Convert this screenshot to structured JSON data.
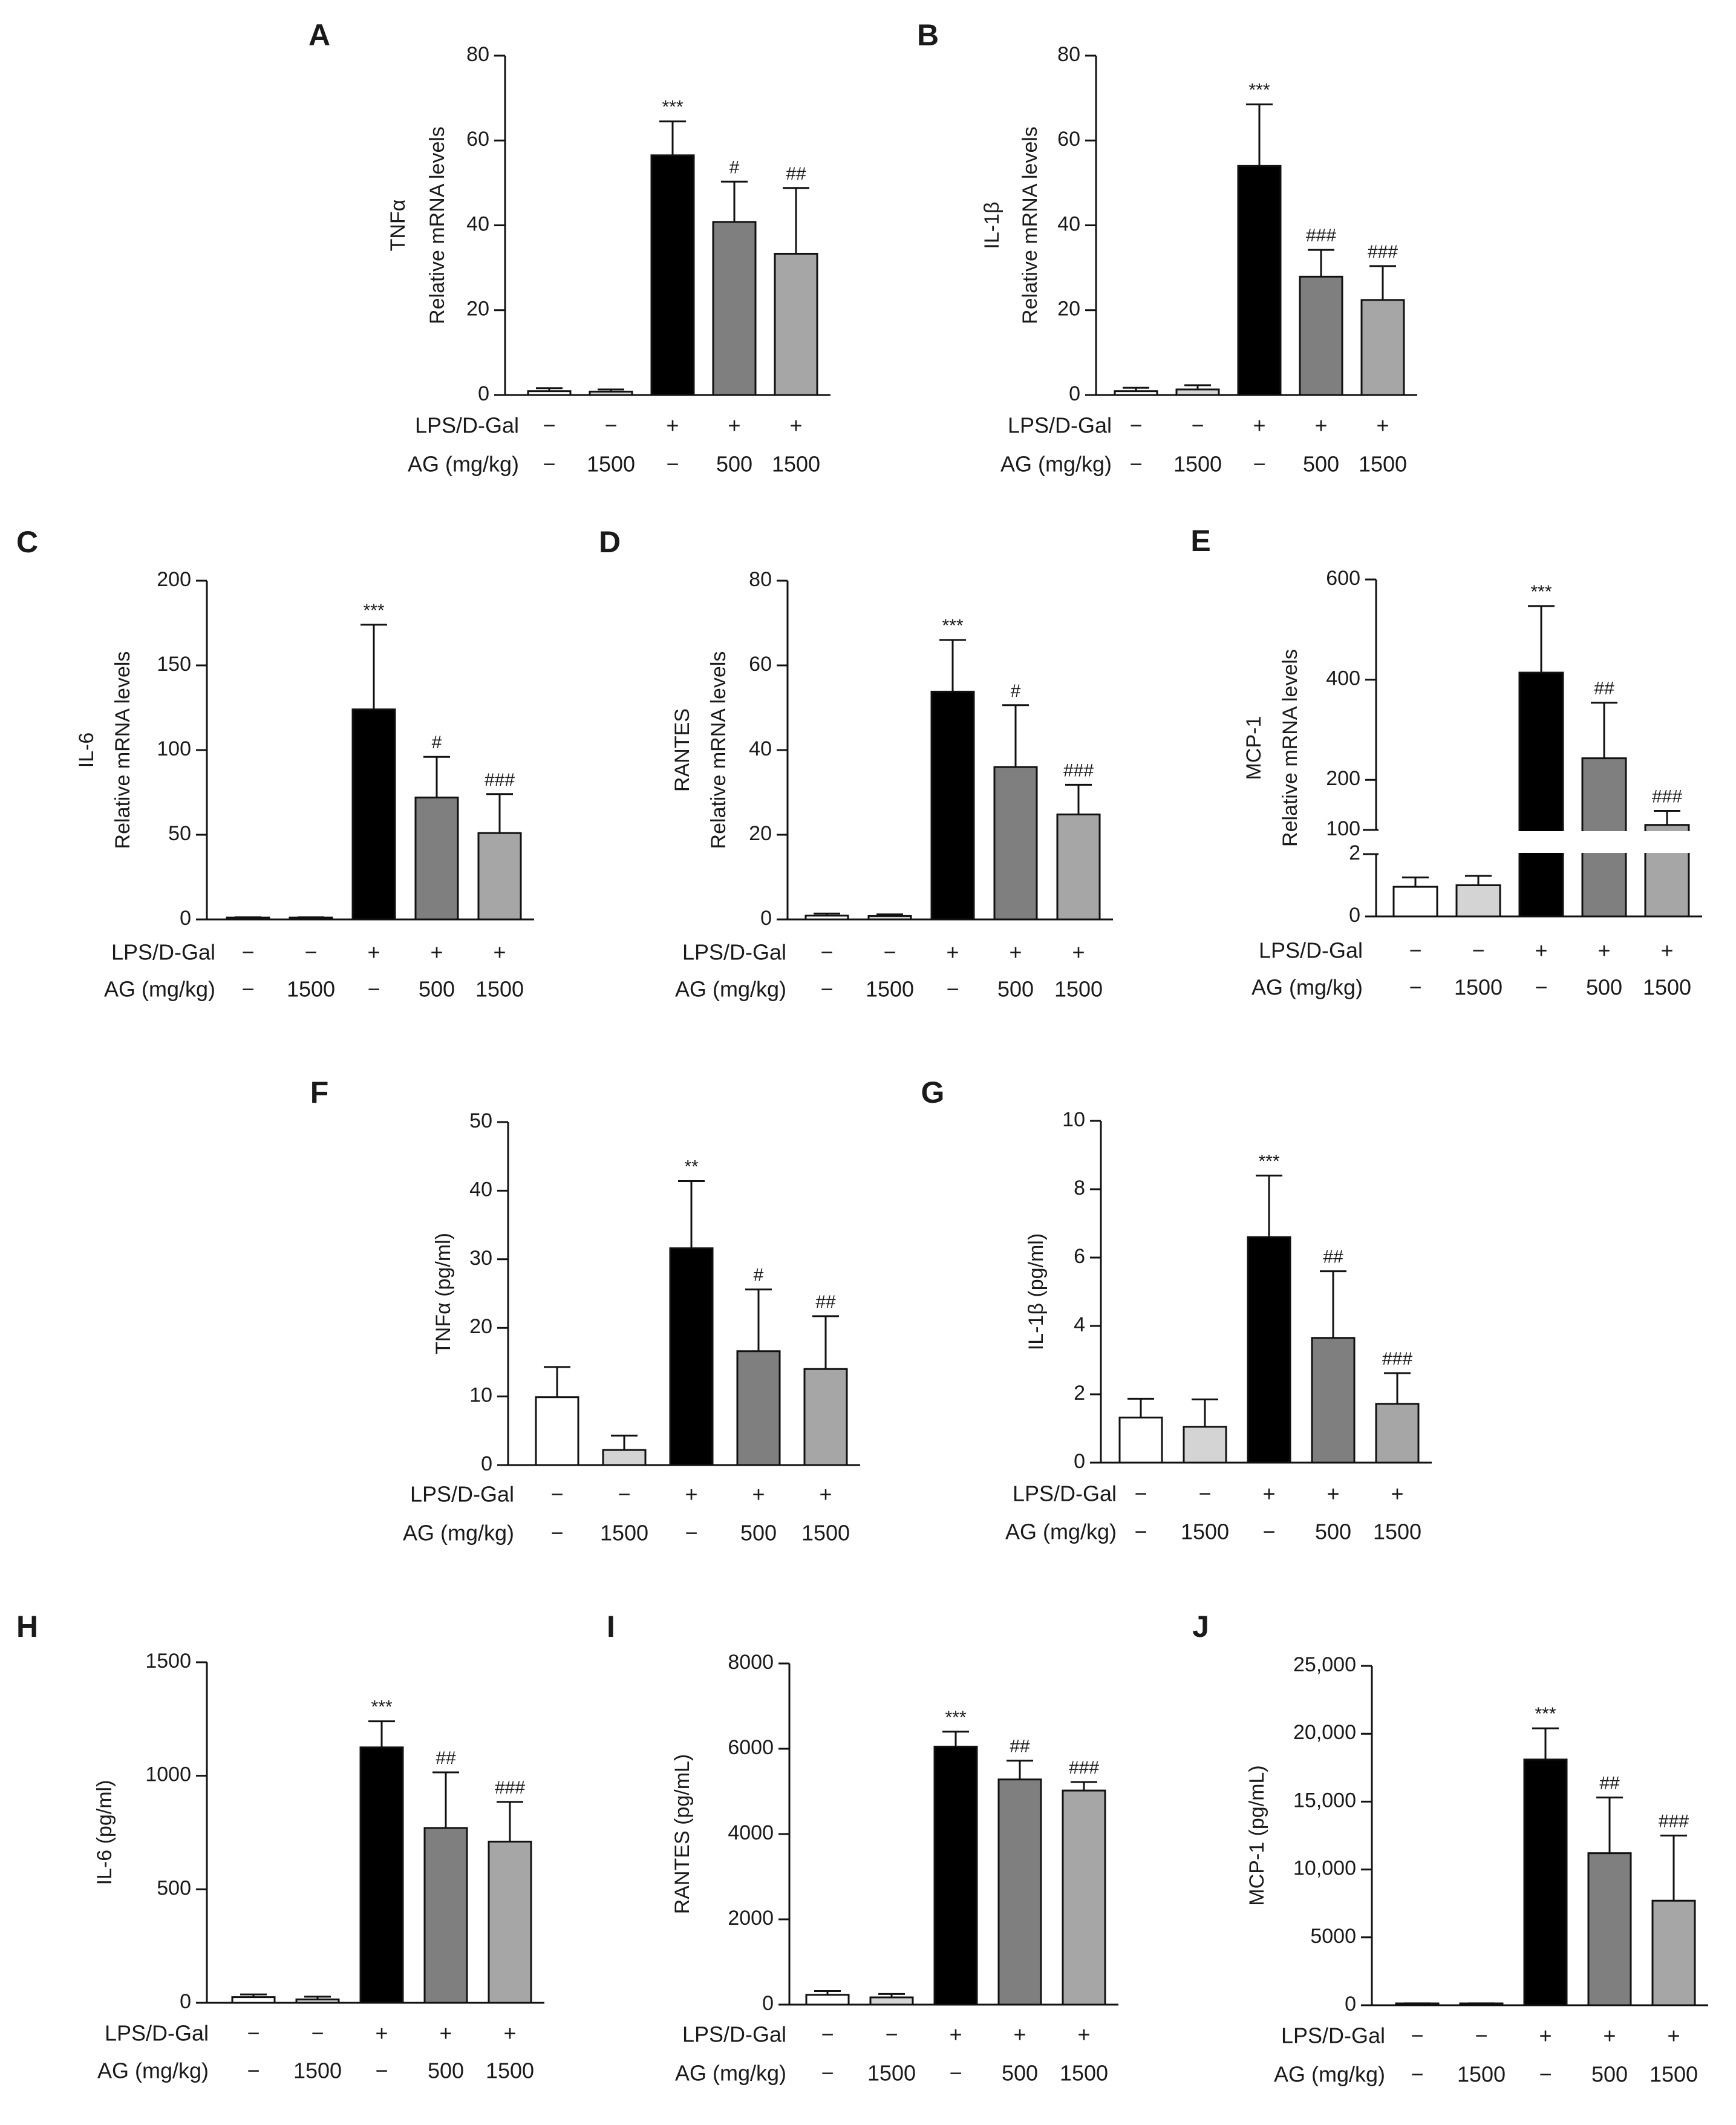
{
  "colors": {
    "group1": "#ffffff",
    "group2": "#d4d4d4",
    "group3": "#000000",
    "group4": "#7f7f7f",
    "group5": "#a6a6a6"
  },
  "chart_data": [
    {
      "panel": "A",
      "type": "bar",
      "ylabel_lines": [
        "TNFα",
        "Relative mRNA levels"
      ],
      "ylim": [
        0,
        80
      ],
      "yticks": [
        0,
        20,
        40,
        60,
        80
      ],
      "ytick_labels": [
        "0",
        "20",
        "40",
        "60",
        "80"
      ],
      "row_labels": [
        "LPS/D-Gal",
        "AG (mg/kg)"
      ],
      "lps": [
        "−",
        "−",
        "+",
        "+",
        "+"
      ],
      "ag": [
        "−",
        "1500",
        "−",
        "500",
        "1500"
      ],
      "values": [
        0.9,
        0.8,
        56.5,
        40.8,
        33.3
      ],
      "errors": [
        0.7,
        0.5,
        8.0,
        9.5,
        15.5
      ],
      "sig": [
        "",
        "",
        "***",
        "#",
        "##"
      ]
    },
    {
      "panel": "B",
      "type": "bar",
      "ylabel_lines": [
        "IL-1β",
        "Relative mRNA levels"
      ],
      "ylim": [
        0,
        80
      ],
      "yticks": [
        0,
        20,
        40,
        60,
        80
      ],
      "ytick_labels": [
        "0",
        "20",
        "40",
        "60",
        "80"
      ],
      "row_labels": [
        "LPS/D-Gal",
        "AG (mg/kg)"
      ],
      "lps": [
        "−",
        "−",
        "+",
        "+",
        "+"
      ],
      "ag": [
        "−",
        "1500",
        "−",
        "500",
        "1500"
      ],
      "values": [
        0.9,
        1.3,
        54.0,
        27.9,
        22.4
      ],
      "errors": [
        0.8,
        1.0,
        14.5,
        6.3,
        8.0
      ],
      "sig": [
        "",
        "",
        "***",
        "###",
        "###"
      ]
    },
    {
      "panel": "C",
      "type": "bar",
      "ylabel_lines": [
        "IL-6",
        "Relative mRNA levels"
      ],
      "ylim": [
        0,
        200
      ],
      "yticks": [
        0,
        50,
        100,
        150,
        200
      ],
      "ytick_labels": [
        "0",
        "50",
        "100",
        "150",
        "200"
      ],
      "row_labels": [
        "LPS/D-Gal",
        "AG (mg/kg)"
      ],
      "lps": [
        "−",
        "−",
        "+",
        "+",
        "+"
      ],
      "ag": [
        "−",
        "1500",
        "−",
        "500",
        "1500"
      ],
      "values": [
        1.0,
        1.0,
        124,
        72,
        51
      ],
      "errors": [
        0.3,
        0.3,
        50,
        24,
        23
      ],
      "sig": [
        "",
        "",
        "***",
        "#",
        "###"
      ]
    },
    {
      "panel": "D",
      "type": "bar",
      "ylabel_lines": [
        "RANTES",
        "Relative mRNA levels"
      ],
      "ylim": [
        0,
        80
      ],
      "yticks": [
        0,
        20,
        40,
        60,
        80
      ],
      "ytick_labels": [
        "0",
        "20",
        "40",
        "60",
        "80"
      ],
      "row_labels": [
        "LPS/D-Gal",
        "AG (mg/kg)"
      ],
      "lps": [
        "−",
        "−",
        "+",
        "+",
        "+"
      ],
      "ag": [
        "−",
        "1500",
        "−",
        "500",
        "1500"
      ],
      "values": [
        0.9,
        0.8,
        53.8,
        36.0,
        24.8
      ],
      "errors": [
        0.5,
        0.4,
        12.2,
        14.6,
        7.0
      ],
      "sig": [
        "",
        "",
        "***",
        "#",
        "###"
      ]
    },
    {
      "panel": "E",
      "type": "bar",
      "axis_break": true,
      "ylabel_lines": [
        "MCP-1",
        "Relative mRNA levels"
      ],
      "ylim": [
        0,
        600
      ],
      "lower_range": [
        0,
        2
      ],
      "upper_range": [
        100,
        600
      ],
      "yticks_lower": [
        0,
        2
      ],
      "yticks_upper": [
        100,
        200,
        400,
        600
      ],
      "ytick_labels_lower": [
        "0",
        "2"
      ],
      "ytick_labels_upper": [
        "100",
        "200",
        "400",
        "600"
      ],
      "row_labels": [
        "LPS/D-Gal",
        "AG (mg/kg)"
      ],
      "lps": [
        "−",
        "−",
        "+",
        "+",
        "+"
      ],
      "ag": [
        "−",
        "1500",
        "−",
        "500",
        "1500"
      ],
      "values": [
        0.95,
        1.0,
        414,
        243,
        110
      ],
      "errors": [
        0.3,
        0.3,
        133,
        111,
        28
      ],
      "sig": [
        "",
        "",
        "***",
        "##",
        "###"
      ]
    },
    {
      "panel": "F",
      "type": "bar",
      "ylabel_lines": [
        "TNFα (pg/ml)"
      ],
      "ylim": [
        0,
        50
      ],
      "yticks": [
        0,
        10,
        20,
        30,
        40,
        50
      ],
      "ytick_labels": [
        "0",
        "10",
        "20",
        "30",
        "40",
        "50"
      ],
      "row_labels": [
        "LPS/D-Gal",
        "AG (mg/kg)"
      ],
      "lps": [
        "−",
        "−",
        "+",
        "+",
        "+"
      ],
      "ag": [
        "−",
        "1500",
        "−",
        "500",
        "1500"
      ],
      "values": [
        9.9,
        2.2,
        31.6,
        16.6,
        14.0
      ],
      "errors": [
        4.4,
        2.1,
        9.8,
        9.0,
        7.7
      ],
      "sig": [
        "",
        "",
        "**",
        "#",
        "##"
      ]
    },
    {
      "panel": "G",
      "type": "bar",
      "ylabel_lines": [
        "IL-1β (pg/ml)"
      ],
      "ylim": [
        0,
        10
      ],
      "yticks": [
        0,
        2,
        4,
        6,
        8,
        10
      ],
      "ytick_labels": [
        "0",
        "2",
        "4",
        "6",
        "8",
        "10"
      ],
      "row_labels": [
        "LPS/D-Gal",
        "AG (mg/kg)"
      ],
      "lps": [
        "−",
        "−",
        "+",
        "+",
        "+"
      ],
      "ag": [
        "−",
        "1500",
        "−",
        "500",
        "1500"
      ],
      "values": [
        1.32,
        1.05,
        6.6,
        3.65,
        1.72
      ],
      "errors": [
        0.55,
        0.8,
        1.8,
        1.95,
        0.9
      ],
      "sig": [
        "",
        "",
        "***",
        "##",
        "###"
      ]
    },
    {
      "panel": "H",
      "type": "bar",
      "ylabel_lines": [
        "IL-6 (pg/ml)"
      ],
      "ylim": [
        0,
        1500
      ],
      "yticks": [
        0,
        500,
        1000,
        1500
      ],
      "ytick_labels": [
        "0",
        "500",
        "1000",
        "1500"
      ],
      "row_labels": [
        "LPS/D-Gal",
        "AG (mg/kg)"
      ],
      "lps": [
        "−",
        "−",
        "+",
        "+",
        "+"
      ],
      "ag": [
        "−",
        "1500",
        "−",
        "500",
        "1500"
      ],
      "values": [
        25,
        15,
        1125,
        770,
        710
      ],
      "errors": [
        12,
        12,
        115,
        245,
        175
      ],
      "sig": [
        "",
        "",
        "***",
        "##",
        "###"
      ]
    },
    {
      "panel": "I",
      "type": "bar",
      "ylabel_lines": [
        "RANTES (pg/mL)"
      ],
      "ylim": [
        0,
        8000
      ],
      "yticks": [
        0,
        2000,
        4000,
        6000,
        8000
      ],
      "ytick_labels": [
        "0",
        "2000",
        "4000",
        "6000",
        "8000"
      ],
      "row_labels": [
        "LPS/D-Gal",
        "AG (mg/kg)"
      ],
      "lps": [
        "−",
        "−",
        "+",
        "+",
        "+"
      ],
      "ag": [
        "−",
        "1500",
        "−",
        "500",
        "1500"
      ],
      "values": [
        230,
        170,
        6050,
        5280,
        5020
      ],
      "errors": [
        90,
        80,
        350,
        440,
        200
      ],
      "sig": [
        "",
        "",
        "***",
        "##",
        "###"
      ]
    },
    {
      "panel": "J",
      "type": "bar",
      "ylabel_lines": [
        "MCP-1 (pg/mL)"
      ],
      "ylim": [
        0,
        25000
      ],
      "yticks": [
        0,
        5000,
        10000,
        15000,
        20000,
        25000
      ],
      "ytick_labels": [
        "0",
        "5000",
        "10,000",
        "15,000",
        "20,000",
        "25,000"
      ],
      "row_labels": [
        "LPS/D-Gal",
        "AG (mg/kg)"
      ],
      "lps": [
        "−",
        "−",
        "+",
        "+",
        "+"
      ],
      "ag": [
        "−",
        "1500",
        "−",
        "500",
        "1500"
      ],
      "values": [
        100,
        100,
        18100,
        11200,
        7700
      ],
      "errors": [
        40,
        40,
        2300,
        4100,
        4800
      ],
      "sig": [
        "",
        "",
        "***",
        "##",
        "###"
      ]
    }
  ]
}
